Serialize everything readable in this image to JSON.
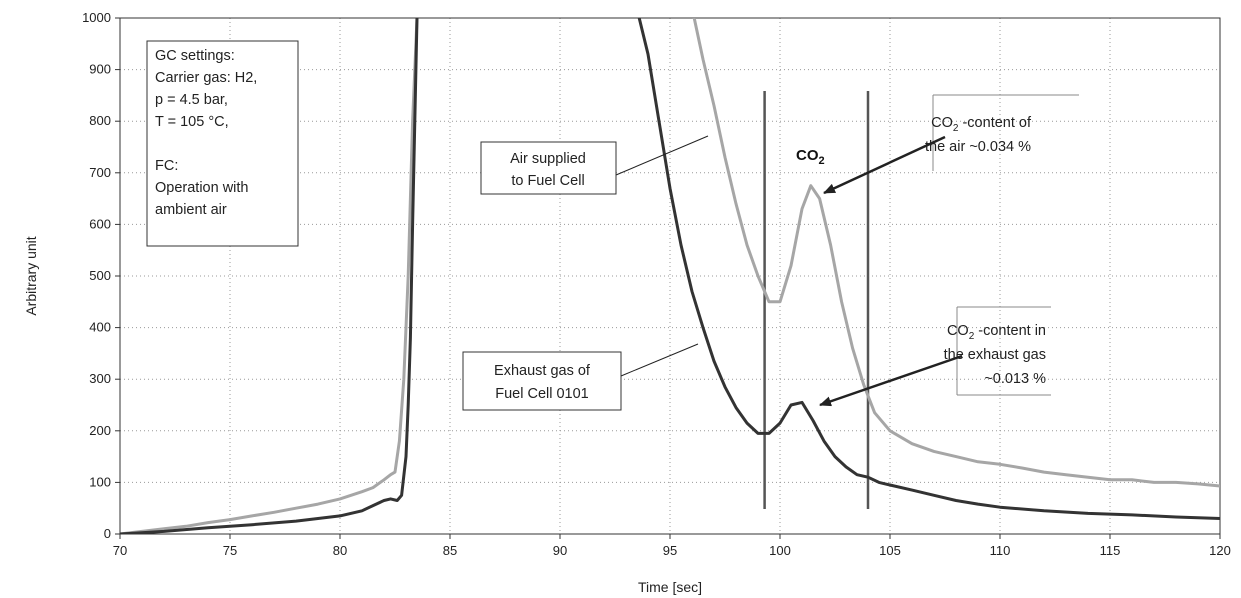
{
  "chart_data": {
    "type": "line",
    "title": "",
    "xlabel": "Time [sec]",
    "ylabel": "Arbitrary unit",
    "xlim": [
      70,
      120
    ],
    "ylim": [
      0,
      1000
    ],
    "x_ticks": [
      70,
      75,
      80,
      85,
      90,
      95,
      100,
      105,
      110,
      115,
      120
    ],
    "y_ticks": [
      0,
      100,
      200,
      300,
      400,
      500,
      600,
      700,
      800,
      900,
      1000
    ],
    "grid": "dotted",
    "legend": "none",
    "colors": {
      "air": "#a6a6a6",
      "exhaust": "#333333",
      "marker": "#555555"
    },
    "series": [
      {
        "key": "air",
        "x": [
          70,
          71,
          72,
          73,
          74,
          75,
          76,
          77,
          78,
          79,
          80,
          81,
          81.5,
          82,
          82.3,
          82.5,
          82.7,
          82.9,
          83.1,
          83.3,
          83.5,
          96.1,
          96.5,
          97,
          97.5,
          98,
          98.5,
          99,
          99.5,
          100,
          100.5,
          101,
          101.4,
          101.8,
          102.3,
          102.8,
          103.3,
          103.8,
          104.3,
          105,
          106,
          107,
          108,
          109,
          110,
          111,
          112,
          113,
          114,
          115,
          116,
          117,
          118,
          119,
          120
        ],
        "y": [
          0,
          5,
          10,
          15,
          22,
          28,
          35,
          42,
          50,
          58,
          68,
          82,
          90,
          105,
          115,
          120,
          180,
          300,
          500,
          800,
          1000,
          1000,
          920,
          830,
          730,
          640,
          560,
          500,
          450,
          450,
          520,
          630,
          675,
          650,
          560,
          450,
          360,
          290,
          235,
          200,
          175,
          160,
          150,
          140,
          135,
          128,
          120,
          115,
          110,
          105,
          105,
          100,
          100,
          97,
          93
        ]
      },
      {
        "key": "exhaust",
        "x": [
          70,
          72,
          74,
          76,
          78,
          80,
          81,
          81.5,
          82,
          82.3,
          82.6,
          82.8,
          83,
          83.1,
          83.2,
          83.3,
          83.4,
          83.5,
          93.6,
          94,
          94.5,
          95,
          95.5,
          96,
          96.5,
          97,
          97.5,
          98,
          98.5,
          99,
          99.5,
          100,
          100.5,
          101,
          101.5,
          102,
          102.5,
          103,
          103.5,
          104,
          104.5,
          105,
          106,
          107,
          108,
          109,
          110,
          112,
          114,
          116,
          118,
          120
        ],
        "y": [
          0,
          5,
          12,
          18,
          25,
          35,
          45,
          55,
          65,
          68,
          65,
          75,
          150,
          250,
          380,
          600,
          800,
          1000,
          1000,
          930,
          800,
          670,
          560,
          470,
          400,
          335,
          285,
          245,
          215,
          195,
          195,
          215,
          250,
          255,
          220,
          180,
          150,
          130,
          115,
          110,
          100,
          95,
          85,
          75,
          65,
          58,
          52,
          45,
          40,
          37,
          33,
          30
        ]
      }
    ],
    "markers_x": [
      99.3,
      104
    ],
    "peak_label": {
      "main": "CO",
      "sub": "2"
    },
    "annotations": {
      "settings": [
        "GC settings:",
        "Carrier gas: H2,",
        "p = 4.5 bar,",
        "T = 105 °C,",
        "",
        "FC:",
        "Operation with",
        "ambient air"
      ],
      "air_label": [
        "Air supplied",
        "to Fuel Cell"
      ],
      "exhaust_label": [
        "Exhaust gas of",
        "Fuel Cell 0101"
      ],
      "air_co2": {
        "line1_main": "CO",
        "line1_sub": "2",
        "line1_rest": " -content of",
        "line2": "the air ~0.034 %"
      },
      "exhaust_co2": {
        "line1_main": "CO",
        "line1_sub": "2",
        "line1_rest": " -content in",
        "line2": "the exhaust gas",
        "line3": "~0.013 %"
      }
    }
  }
}
